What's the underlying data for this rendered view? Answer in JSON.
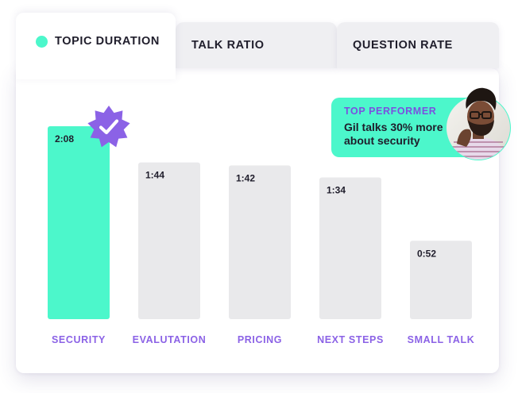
{
  "tabs": [
    {
      "label": "TOPIC DURATION",
      "active": true
    },
    {
      "label": "TALK RATIO",
      "active": false
    },
    {
      "label": "QUESTION RATE",
      "active": false
    }
  ],
  "callout": {
    "heading": "TOP PERFORMER",
    "text": "Gil talks 30% more about security"
  },
  "colors": {
    "accent": "#4cf7cb",
    "purple": "#8b62e6",
    "bar_default": "#e9e9eb"
  },
  "icons": {
    "badge": "verified-badge-icon",
    "avatar": "performer-avatar"
  },
  "chart_data": {
    "type": "bar",
    "categories": [
      "SECURITY",
      "EVALUTATION",
      "PRICING",
      "NEXT STEPS",
      "SMALL TALK"
    ],
    "values": [
      128,
      104,
      102,
      94,
      52
    ],
    "value_labels": [
      "2:08",
      "1:44",
      "1:42",
      "1:34",
      "0:52"
    ],
    "highlight_index": 0,
    "title": "",
    "xlabel": "",
    "ylabel": "",
    "ylim": [
      0,
      128
    ],
    "grid": false
  }
}
